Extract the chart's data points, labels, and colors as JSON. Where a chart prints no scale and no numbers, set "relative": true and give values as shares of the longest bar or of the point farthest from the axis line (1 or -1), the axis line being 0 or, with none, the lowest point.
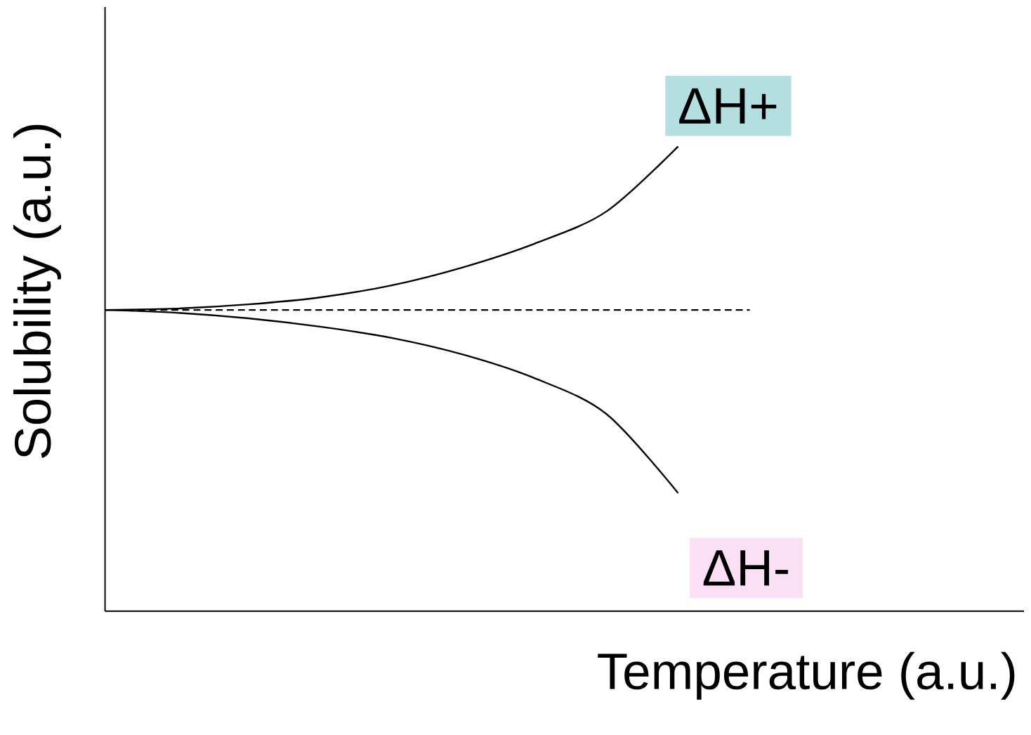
{
  "chart_data": {
    "type": "line",
    "relative": true,
    "xlabel": "Temperature (a.u.)",
    "ylabel": "Solubility (a.u.)",
    "categories": [
      null,
      null,
      null,
      null,
      null,
      null,
      null,
      null,
      null,
      null
    ],
    "series": [
      {
        "color": "#000000",
        "values": [
          0.648,
          0.651,
          0.66,
          0.675,
          0.701,
          0.74,
          0.791,
          0.86,
          1.0,
          null
        ]
      },
      {
        "color": "#000000",
        "values": [
          0.648,
          0.642,
          0.63,
          0.612,
          0.588,
          0.552,
          0.501,
          0.424,
          0.254,
          null
        ]
      },
      {
        "color": "#000000",
        "line_style": "dashed",
        "values": [
          0.648,
          0.648,
          0.648,
          0.648,
          0.648,
          0.648,
          0.648,
          0.648,
          0.648,
          0.648
        ]
      }
    ],
    "annotations": [
      "ΔH+",
      "ΔH-"
    ]
  }
}
